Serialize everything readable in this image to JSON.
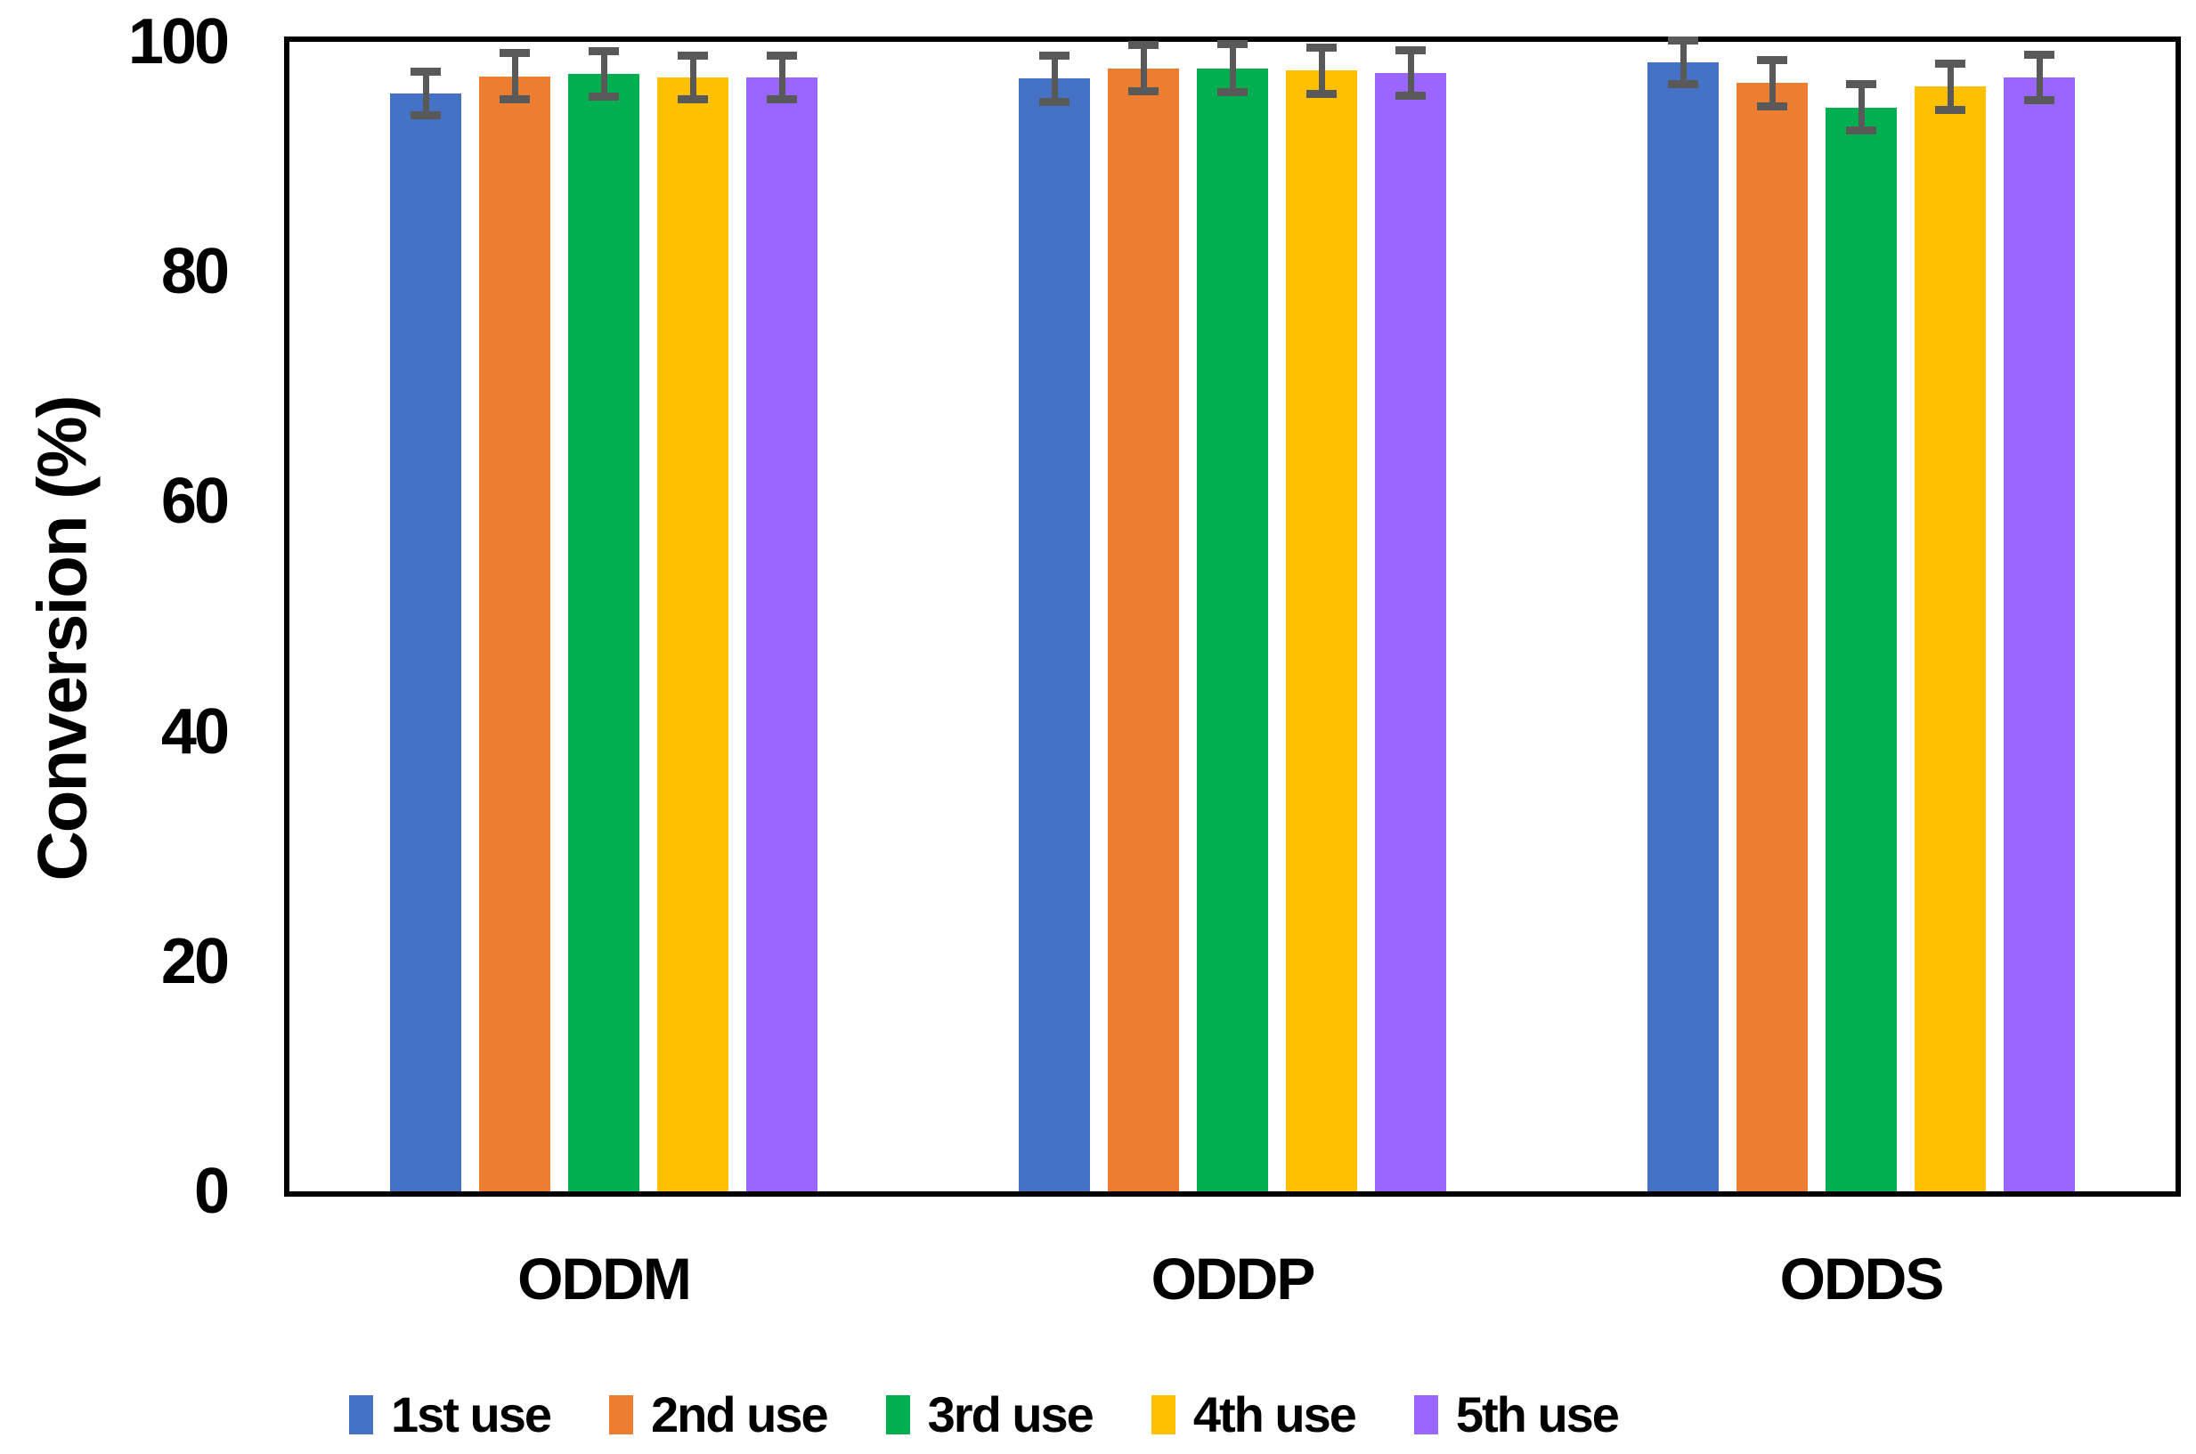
{
  "chart_data": {
    "type": "bar",
    "title": "",
    "xlabel": "",
    "ylabel": "Conversion (%)",
    "ylim": [
      0,
      100
    ],
    "yticks": [
      0,
      20,
      40,
      60,
      80,
      100
    ],
    "grid": false,
    "legend_position": "bottom",
    "axis_color": "#000000",
    "error_bar_color": "#595959",
    "categories": [
      "ODDM",
      "ODDP",
      "ODDS"
    ],
    "series": [
      {
        "name": "1st use",
        "color": "#4472C4",
        "values": [
          95.5,
          96.8,
          98.2
        ],
        "errors": [
          1.9,
          2.0,
          1.9
        ]
      },
      {
        "name": "2nd use",
        "color": "#ED7D31",
        "values": [
          97.0,
          97.7,
          96.4
        ],
        "errors": [
          2.0,
          2.0,
          2.0
        ]
      },
      {
        "name": "3rd use",
        "color": "#00B050",
        "values": [
          97.2,
          97.7,
          94.3
        ],
        "errors": [
          2.0,
          2.1,
          2.0
        ]
      },
      {
        "name": "4th use",
        "color": "#FFC000",
        "values": [
          96.9,
          97.5,
          96.1
        ],
        "errors": [
          1.9,
          2.0,
          2.0
        ]
      },
      {
        "name": "5th use",
        "color": "#9966FF",
        "values": [
          96.9,
          97.3,
          96.9
        ],
        "errors": [
          1.9,
          2.0,
          2.0
        ]
      }
    ]
  }
}
